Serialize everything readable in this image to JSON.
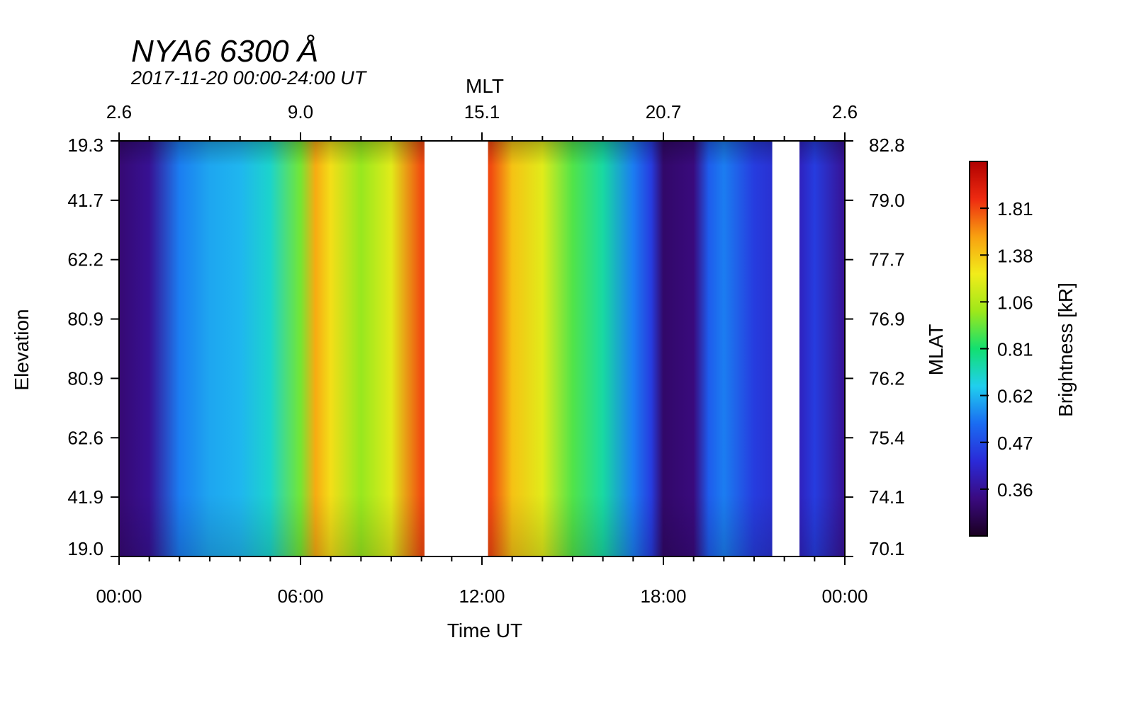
{
  "chart_data": {
    "type": "heatmap",
    "title": "NYA6 6300 Å",
    "subtitle": "2017-11-20 00:00-24:00 UT",
    "xlabel": "Time UT",
    "top_xlabel": "MLT",
    "ylabel": "Elevation",
    "right_ylabel": "MLAT",
    "colorbar_label": "Brightness [kR]",
    "x_range_hours": [
      0,
      24
    ],
    "x_ticks": [
      {
        "hour": 0,
        "label": "00:00"
      },
      {
        "hour": 6,
        "label": "06:00"
      },
      {
        "hour": 12,
        "label": "12:00"
      },
      {
        "hour": 18,
        "label": "18:00"
      },
      {
        "hour": 24,
        "label": "00:00"
      }
    ],
    "mlt_ticks": [
      {
        "hour": 0,
        "label": "2.6"
      },
      {
        "hour": 6,
        "label": "9.0"
      },
      {
        "hour": 12,
        "label": "15.1"
      },
      {
        "hour": 18,
        "label": "20.7"
      },
      {
        "hour": 24,
        "label": "2.6"
      }
    ],
    "elevation_ticks": [
      "19.3",
      "41.7",
      "62.2",
      "80.9",
      "80.9",
      "62.6",
      "41.9",
      "19.0"
    ],
    "mlat_ticks": [
      "82.8",
      "79.0",
      "77.7",
      "76.9",
      "76.2",
      "75.4",
      "74.1",
      "70.1"
    ],
    "colorbar_ticks": [
      "0.36",
      "0.47",
      "0.62",
      "0.81",
      "1.06",
      "1.38",
      "1.81"
    ],
    "colorscale": [
      "#1a0020",
      "#3a0a80",
      "#2a2ad8",
      "#1a6cf2",
      "#20cfee",
      "#12e070",
      "#9ee81a",
      "#f2ec1a",
      "#f8a010",
      "#ee2a10",
      "#b00000"
    ],
    "data_gaps_hours": [
      [
        10.1,
        12.2
      ],
      [
        21.6,
        22.5
      ]
    ],
    "brightness_profile_kR": [
      {
        "hour": 0.0,
        "value": 0.25
      },
      {
        "hour": 1.0,
        "value": 0.35
      },
      {
        "hour": 2.0,
        "value": 0.55
      },
      {
        "hour": 3.0,
        "value": 0.6
      },
      {
        "hour": 4.0,
        "value": 0.62
      },
      {
        "hour": 5.0,
        "value": 0.7
      },
      {
        "hour": 6.0,
        "value": 0.95
      },
      {
        "hour": 6.5,
        "value": 1.5
      },
      {
        "hour": 7.0,
        "value": 1.3
      },
      {
        "hour": 8.0,
        "value": 1.0
      },
      {
        "hour": 9.0,
        "value": 1.2
      },
      {
        "hour": 10.0,
        "value": 1.8
      },
      {
        "hour": 12.3,
        "value": 1.8
      },
      {
        "hour": 13.0,
        "value": 1.4
      },
      {
        "hour": 14.0,
        "value": 1.2
      },
      {
        "hour": 15.0,
        "value": 0.9
      },
      {
        "hour": 16.0,
        "value": 0.75
      },
      {
        "hour": 17.0,
        "value": 0.55
      },
      {
        "hour": 17.6,
        "value": 0.45
      },
      {
        "hour": 18.0,
        "value": 0.22
      },
      {
        "hour": 19.0,
        "value": 0.28
      },
      {
        "hour": 19.5,
        "value": 0.5
      },
      {
        "hour": 20.0,
        "value": 0.55
      },
      {
        "hour": 21.0,
        "value": 0.45
      },
      {
        "hour": 22.5,
        "value": 0.4
      },
      {
        "hour": 23.0,
        "value": 0.45
      },
      {
        "hour": 24.0,
        "value": 0.35
      }
    ]
  }
}
